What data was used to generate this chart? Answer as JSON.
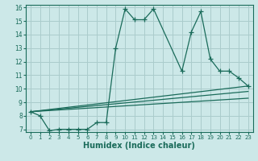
{
  "xlabel": "Humidex (Indice chaleur)",
  "bg_color": "#cce8e8",
  "grid_color": "#aacccc",
  "line_color": "#1a6b5a",
  "xlim": [
    -0.5,
    23.5
  ],
  "ylim": [
    6.8,
    16.2
  ],
  "xticks": [
    0,
    1,
    2,
    3,
    4,
    5,
    6,
    7,
    8,
    9,
    10,
    11,
    12,
    13,
    14,
    15,
    16,
    17,
    18,
    19,
    20,
    21,
    22,
    23
  ],
  "yticks": [
    7,
    8,
    9,
    10,
    11,
    12,
    13,
    14,
    15,
    16
  ],
  "main_series": {
    "x": [
      0,
      1,
      2,
      3,
      4,
      5,
      6,
      7,
      8,
      9,
      10,
      11,
      12,
      13,
      16,
      17,
      18,
      19,
      20,
      21,
      22,
      23
    ],
    "y": [
      8.3,
      8.0,
      6.9,
      7.0,
      7.0,
      7.0,
      7.0,
      7.5,
      7.5,
      13.0,
      15.9,
      15.1,
      15.1,
      15.9,
      11.3,
      14.2,
      15.7,
      12.2,
      11.3,
      11.3,
      10.8,
      10.2
    ]
  },
  "trend_lines": [
    {
      "x": [
        0,
        23
      ],
      "y": [
        8.3,
        10.2
      ]
    },
    {
      "x": [
        0,
        23
      ],
      "y": [
        8.3,
        9.8
      ]
    },
    {
      "x": [
        0,
        23
      ],
      "y": [
        8.3,
        9.3
      ]
    }
  ]
}
